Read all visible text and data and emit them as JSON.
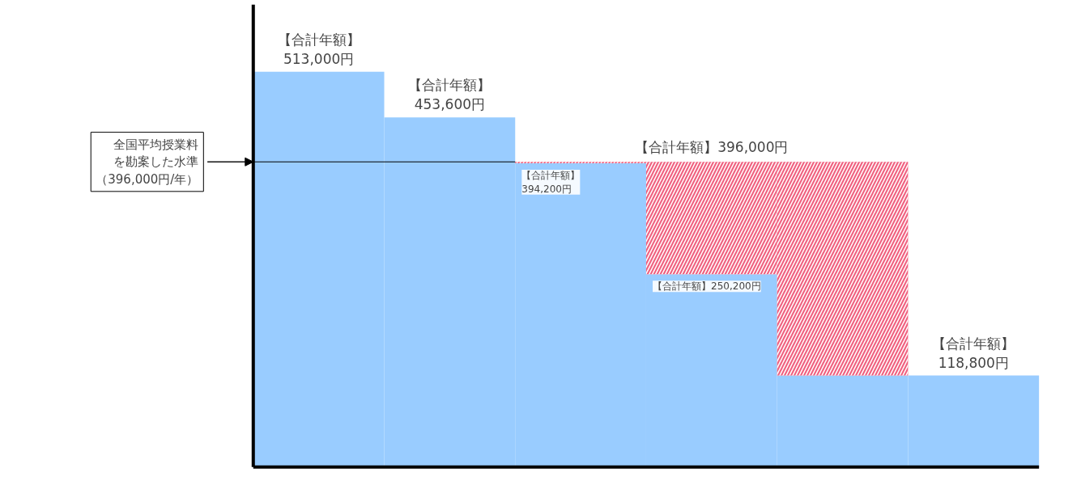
{
  "chart_data": {
    "type": "bar",
    "stacked": true,
    "categories": [
      null,
      null,
      null,
      null,
      null,
      null
    ],
    "series": [
      {
        "color": "#99ccff",
        "values": [
          513000,
          453600,
          394200,
          250200,
          118800,
          118800
        ],
        "value_labels": [
          "【合計年額】\n513,000円",
          "【合計年額】\n453,600円",
          "【合計年額】\n394,200円",
          "【合計年額】250,200円",
          null,
          "【合計年額】\n118,800円"
        ]
      },
      {
        "color": "#f0607f",
        "values": [
          null,
          null,
          1800,
          145800,
          277200,
          null
        ]
      }
    ],
    "annotations": [
      {
        "text": "【合計年額】396,000円",
        "y": 396000
      }
    ],
    "ref_lines": [
      {
        "axis": "y",
        "value": 396000,
        "label": "全国平均授業料を勘案した水準（396,000円/年）"
      }
    ],
    "tick_labels": false,
    "grid": false
  }
}
